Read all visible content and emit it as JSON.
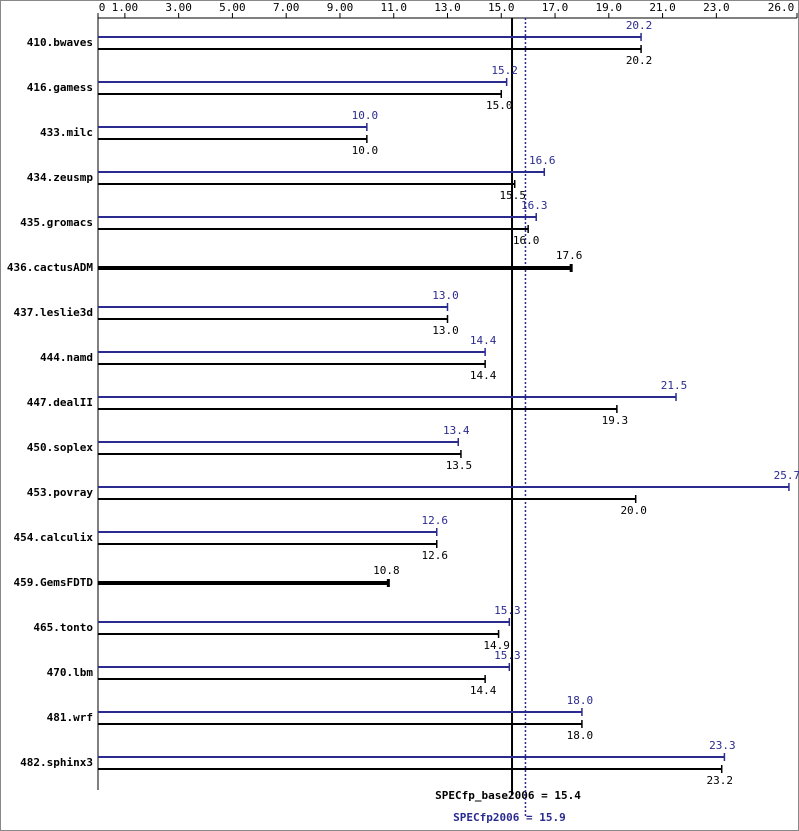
{
  "chart_data": {
    "type": "bar",
    "orientation": "horizontal",
    "categories": [
      "410.bwaves",
      "416.gamess",
      "433.milc",
      "434.zeusmp",
      "435.gromacs",
      "436.cactusADM",
      "437.leslie3d",
      "444.namd",
      "447.dealII",
      "450.soplex",
      "453.povray",
      "454.calculix",
      "459.GemsFDTD",
      "465.tonto",
      "470.lbm",
      "481.wrf",
      "482.sphinx3"
    ],
    "series": [
      {
        "color": "#2b2b8f",
        "values": [
          20.2,
          15.2,
          10.0,
          16.6,
          16.3,
          null,
          13.0,
          14.4,
          21.5,
          13.4,
          25.7,
          12.6,
          null,
          15.3,
          15.3,
          18.0,
          23.3
        ],
        "value_labels": [
          "20.2",
          "15.2",
          "10.0",
          "16.6",
          "16.3",
          null,
          "13.0",
          "14.4",
          "21.5",
          "13.4",
          "25.7",
          "12.6",
          null,
          "15.3",
          "15.3",
          "18.0",
          "23.3"
        ]
      },
      {
        "color": "#000000",
        "values": [
          20.2,
          15.0,
          10.0,
          15.5,
          16.0,
          17.6,
          13.0,
          14.4,
          19.3,
          13.5,
          20.0,
          12.6,
          10.8,
          14.9,
          14.4,
          18.0,
          23.2
        ],
        "value_labels": [
          "20.2",
          "15.0",
          "10.0",
          "15.5",
          "16.0",
          "17.6",
          "13.0",
          "14.4",
          "19.3",
          "13.5",
          "20.0",
          "12.6",
          "10.8",
          "14.9",
          "14.4",
          "18.0",
          "23.2"
        ]
      }
    ],
    "xlim": [
      0,
      26
    ],
    "xticks": [
      0,
      {
        "value": 1,
        "label": "1.00"
      },
      {
        "value": 3,
        "label": "3.00"
      },
      {
        "value": 5,
        "label": "5.00"
      },
      {
        "value": 7,
        "label": "7.00"
      },
      {
        "value": 9,
        "label": "9.00"
      },
      {
        "value": 11,
        "label": "11.0"
      },
      {
        "value": 13,
        "label": "13.0"
      },
      {
        "value": 15,
        "label": "15.0"
      },
      {
        "value": 17,
        "label": "17.0"
      },
      {
        "value": 19,
        "label": "19.0"
      },
      {
        "value": 21,
        "label": "21.0"
      },
      {
        "value": 23,
        "label": "23.0"
      },
      {
        "value": 26,
        "label": "26.0"
      }
    ],
    "reference_lines": [
      {
        "label": "SPECfp_base2006 = 15.4",
        "value": 15.4,
        "color": "#000000",
        "dashed": false
      },
      {
        "label": "SPECfp2006 = 15.9",
        "value": 15.9,
        "color": "#2b2b8f",
        "dashed": true
      }
    ]
  }
}
